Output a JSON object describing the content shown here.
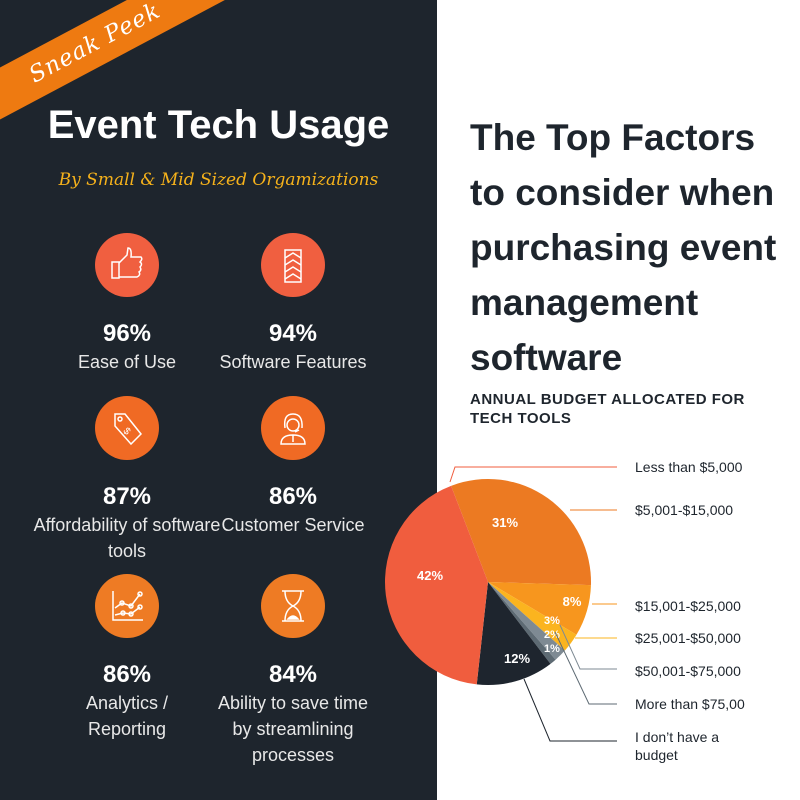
{
  "ribbon": "Sneak Peek",
  "left": {
    "title": "Event Tech Usage",
    "subtitle": "By Small & Mid Sized Orgamizations",
    "stats": [
      {
        "value": "96%",
        "label": "Ease of Use",
        "icon": "thumbs-up-icon",
        "color": "#f05f40"
      },
      {
        "value": "94%",
        "label": "Software Features",
        "icon": "chevrons-up-icon",
        "color": "#f05f40"
      },
      {
        "value": "87%",
        "label": "Affordability of software tools",
        "icon": "price-tag-icon",
        "color": "#f06a24"
      },
      {
        "value": "86%",
        "label": "Customer Service",
        "icon": "headset-agent-icon",
        "color": "#f06a24"
      },
      {
        "value": "86%",
        "label": "Analytics / Reporting",
        "icon": "line-chart-icon",
        "color": "#ee7b24"
      },
      {
        "value": "84%",
        "label": "Ability to save time by streamlining processes",
        "icon": "hourglass-icon",
        "color": "#ee7b24"
      }
    ]
  },
  "right": {
    "title": "The Top Factors to consider when purchasing event management software"
  },
  "chart_data": {
    "type": "pie",
    "title": "ANNUAL BUDGET ALLOCATED FOR TECH TOOLS",
    "categories": [
      "Less than $5,000",
      "$5,001-$15,000",
      "$15,001-$25,000",
      "$25,001-$50,000",
      "$50,001-$75,000",
      "More than $75,00",
      "I don’t have a budget"
    ],
    "values": [
      42,
      31,
      8,
      3,
      2,
      1,
      12
    ],
    "labels": [
      "42%",
      "31%",
      "8%",
      "3%",
      "2%",
      "1%",
      "12%"
    ],
    "colors": [
      "#f05d3e",
      "#ec7a22",
      "#f7961e",
      "#fbb41f",
      "#7e8a93",
      "#5d6a73",
      "#1e252e"
    ]
  }
}
